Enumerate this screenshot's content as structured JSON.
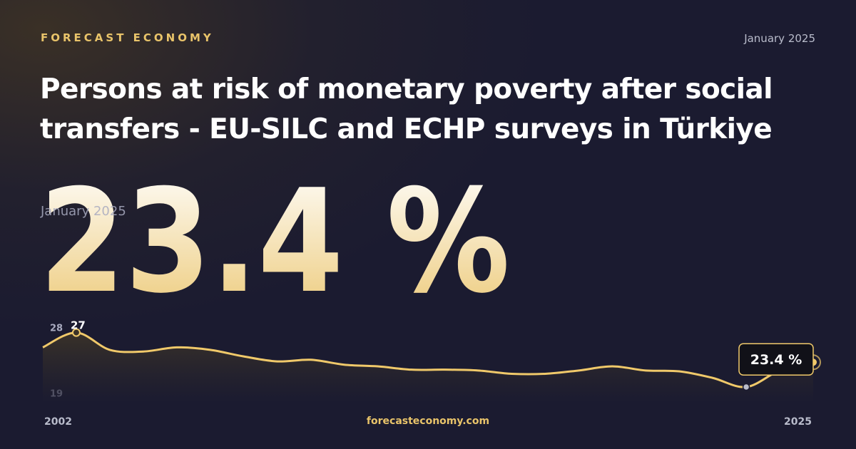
{
  "header": {
    "brand": "FORECAST ECONOMY",
    "date": "January 2025"
  },
  "title": "Persons at risk of monetary poverty after social transfers - EU-SILC and ECHP surveys in Türkiye",
  "headline": {
    "value": {
      "value": 23.4,
      "label": "23.4 %"
    },
    "date": "January 2025"
  },
  "footer": "forecasteconomy.com",
  "chart_data": {
    "type": "line",
    "x": [
      2002,
      2003,
      2004,
      2005,
      2006,
      2007,
      2008,
      2009,
      2010,
      2011,
      2012,
      2013,
      2014,
      2015,
      2016,
      2017,
      2018,
      2019,
      2020,
      2021,
      2022,
      2023,
      2024,
      2025
    ],
    "series": [
      {
        "name": "Persons at risk of monetary poverty",
        "color": "#f0c96a",
        "values": [
          25.2,
          27,
          24.9,
          24.7,
          25.2,
          24.9,
          24.1,
          23.5,
          23.7,
          23.1,
          22.9,
          22.5,
          22.5,
          22.4,
          22.0,
          22.0,
          22.4,
          22.9,
          22.4,
          22.3,
          21.5,
          20.4,
          22.4,
          23.4
        ],
        "value_labels": [
          null,
          null,
          null,
          null,
          null,
          null,
          null,
          null,
          null,
          null,
          null,
          null,
          null,
          null,
          null,
          null,
          null,
          null,
          null,
          null,
          null,
          null,
          null,
          "23.4 %"
        ]
      }
    ],
    "xlim": [
      2002,
      2025
    ],
    "xticks": [
      2002,
      2025
    ],
    "ylim": [
      18.5,
      28
    ],
    "yticks": [
      19,
      28
    ]
  }
}
